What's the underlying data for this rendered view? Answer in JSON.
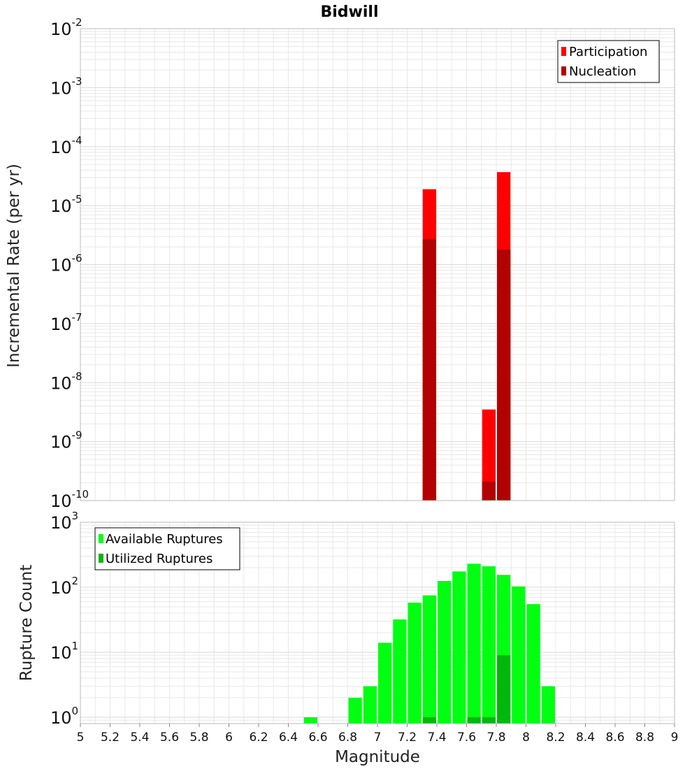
{
  "title": "Bidwill",
  "colors": {
    "participation": "#ff0000",
    "nucleation": "#b30000",
    "available": "#00ff11",
    "utilized": "#00b80c",
    "grid": "#e8e8e8",
    "frame": "#bbbbbb"
  },
  "chart_data": [
    {
      "type": "bar",
      "xlabel": "",
      "ylabel": "Incremental Rate (per yr)",
      "yscale": "log",
      "xlim": [
        5,
        9
      ],
      "ylim": [
        1e-10,
        0.01
      ],
      "grid": true,
      "legend_position": "top-right",
      "bar_width": 0.1,
      "yticks": [
        {
          "base": "10",
          "exp": "-10",
          "value": 1e-10
        },
        {
          "base": "10",
          "exp": "-9",
          "value": 1e-09
        },
        {
          "base": "10",
          "exp": "-8",
          "value": 1e-08
        },
        {
          "base": "10",
          "exp": "-7",
          "value": 1e-07
        },
        {
          "base": "10",
          "exp": "-6",
          "value": 1e-06
        },
        {
          "base": "10",
          "exp": "-5",
          "value": 1e-05
        },
        {
          "base": "10",
          "exp": "-4",
          "value": 0.0001
        },
        {
          "base": "10",
          "exp": "-3",
          "value": 0.001
        },
        {
          "base": "10",
          "exp": "-2",
          "value": 0.01
        }
      ],
      "series": [
        {
          "name": "Participation",
          "color_key": "participation",
          "x": [
            7.35,
            7.75,
            7.85
          ],
          "values": [
            1.9e-05,
            3.5e-09,
            3.7e-05
          ]
        },
        {
          "name": "Nucleation",
          "color_key": "nucleation",
          "x": [
            7.35,
            7.75,
            7.85
          ],
          "values": [
            2.7e-06,
            2.1e-10,
            1.8e-06
          ]
        }
      ]
    },
    {
      "type": "bar",
      "xlabel": "Magnitude",
      "ylabel": "Rupture Count",
      "yscale": "log",
      "xlim": [
        5,
        9
      ],
      "ylim": [
        0.8,
        1000
      ],
      "grid": true,
      "legend_position": "top-left",
      "bar_width": 0.1,
      "xticks": [
        "5",
        "5.2",
        "5.4",
        "5.6",
        "5.8",
        "6",
        "6.2",
        "6.4",
        "6.6",
        "6.8",
        "7",
        "7.2",
        "7.4",
        "7.6",
        "7.8",
        "8",
        "8.2",
        "8.4",
        "8.6",
        "8.8",
        "9"
      ],
      "yticks": [
        {
          "base": "10",
          "exp": "0",
          "value": 1
        },
        {
          "base": "10",
          "exp": "1",
          "value": 10
        },
        {
          "base": "10",
          "exp": "2",
          "value": 100
        },
        {
          "base": "10",
          "exp": "3",
          "value": 1000
        }
      ],
      "series": [
        {
          "name": "Available Ruptures",
          "color_key": "available",
          "x": [
            6.55,
            6.85,
            6.95,
            7.05,
            7.15,
            7.25,
            7.35,
            7.45,
            7.55,
            7.65,
            7.75,
            7.85,
            7.95,
            8.05,
            8.15
          ],
          "values": [
            1,
            2,
            3,
            14,
            32,
            58,
            75,
            125,
            175,
            230,
            210,
            155,
            103,
            55,
            3
          ]
        },
        {
          "name": "Utilized Ruptures",
          "color_key": "utilized",
          "x": [
            7.35,
            7.65,
            7.75,
            7.85
          ],
          "values": [
            1,
            1,
            1,
            9
          ]
        }
      ]
    }
  ]
}
